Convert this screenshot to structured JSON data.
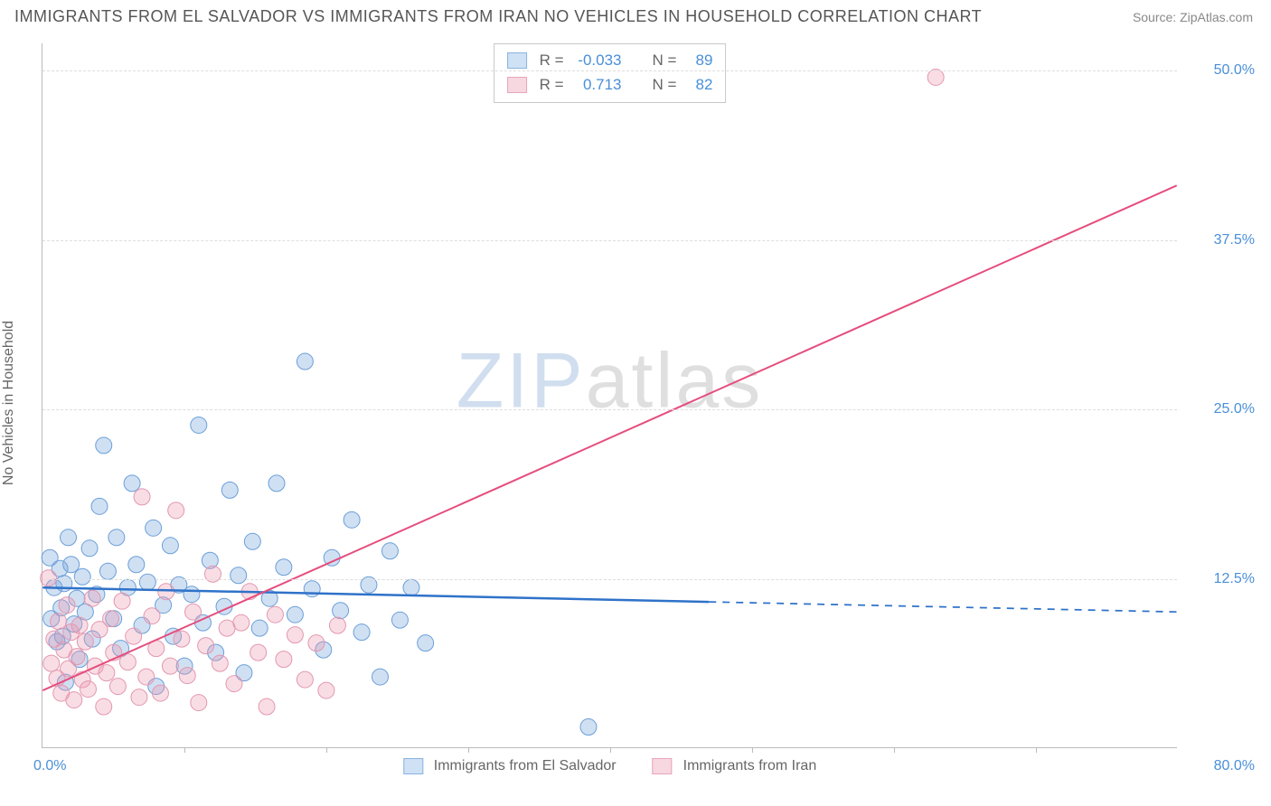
{
  "header": {
    "title": "IMMIGRANTS FROM EL SALVADOR VS IMMIGRANTS FROM IRAN NO VEHICLES IN HOUSEHOLD CORRELATION CHART",
    "source": "Source: ZipAtlas.com"
  },
  "watermark": {
    "part1": "ZIP",
    "part2": "atlas"
  },
  "axes": {
    "y_title": "No Vehicles in Household",
    "x_min": 0,
    "x_max": 80,
    "y_min": 0,
    "y_max": 52,
    "x_origin_label": "0.0%",
    "x_max_label": "80.0%",
    "y_ticks": [
      {
        "v": 12.5,
        "label": "12.5%"
      },
      {
        "v": 25.0,
        "label": "25.0%"
      },
      {
        "v": 37.5,
        "label": "37.5%"
      },
      {
        "v": 50.0,
        "label": "50.0%"
      }
    ],
    "x_tick_positions": [
      10,
      20,
      30,
      40,
      50,
      60,
      70
    ],
    "grid_color": "#dddddd",
    "tick_label_color": "#4a8fd8"
  },
  "series": [
    {
      "key": "el_salvador",
      "label": "Immigrants from El Salvador",
      "color_fill": "rgba(120,165,220,0.35)",
      "color_stroke": "#6a9fd8",
      "swatch_fill": "#cfe1f5",
      "swatch_border": "#8ab4e0",
      "R": "-0.033",
      "N": "89",
      "trend": {
        "x1": 0,
        "y1": 11.8,
        "x2": 80,
        "y2": 10.0,
        "solid_until_x": 47,
        "line_color": "#2f72c9",
        "line_width": 2.5
      },
      "marker_radius": 9,
      "points": [
        [
          0.5,
          14
        ],
        [
          0.6,
          9.5
        ],
        [
          0.8,
          11.8
        ],
        [
          1.0,
          7.8
        ],
        [
          1.2,
          13.2
        ],
        [
          1.3,
          10.3
        ],
        [
          1.4,
          8.2
        ],
        [
          1.5,
          12.1
        ],
        [
          1.6,
          4.8
        ],
        [
          1.8,
          15.5
        ],
        [
          2.0,
          13.5
        ],
        [
          2.2,
          9.1
        ],
        [
          2.4,
          11.0
        ],
        [
          2.6,
          6.5
        ],
        [
          2.8,
          12.6
        ],
        [
          3.0,
          10.0
        ],
        [
          3.3,
          14.7
        ],
        [
          3.5,
          8.0
        ],
        [
          3.8,
          11.3
        ],
        [
          4.0,
          17.8
        ],
        [
          4.3,
          22.3
        ],
        [
          4.6,
          13.0
        ],
        [
          5.0,
          9.5
        ],
        [
          5.2,
          15.5
        ],
        [
          5.5,
          7.3
        ],
        [
          6.0,
          11.8
        ],
        [
          6.3,
          19.5
        ],
        [
          6.6,
          13.5
        ],
        [
          7.0,
          9.0
        ],
        [
          7.4,
          12.2
        ],
        [
          7.8,
          16.2
        ],
        [
          8.0,
          4.5
        ],
        [
          8.5,
          10.5
        ],
        [
          9.0,
          14.9
        ],
        [
          9.2,
          8.2
        ],
        [
          9.6,
          12.0
        ],
        [
          10.0,
          6.0
        ],
        [
          10.5,
          11.3
        ],
        [
          11.0,
          23.8
        ],
        [
          11.3,
          9.2
        ],
        [
          11.8,
          13.8
        ],
        [
          12.2,
          7.0
        ],
        [
          12.8,
          10.4
        ],
        [
          13.2,
          19.0
        ],
        [
          13.8,
          12.7
        ],
        [
          14.2,
          5.5
        ],
        [
          14.8,
          15.2
        ],
        [
          15.3,
          8.8
        ],
        [
          16.0,
          11.0
        ],
        [
          16.5,
          19.5
        ],
        [
          17.0,
          13.3
        ],
        [
          17.8,
          9.8
        ],
        [
          18.5,
          28.5
        ],
        [
          19.0,
          11.7
        ],
        [
          19.8,
          7.2
        ],
        [
          20.4,
          14.0
        ],
        [
          21.0,
          10.1
        ],
        [
          21.8,
          16.8
        ],
        [
          22.5,
          8.5
        ],
        [
          23.0,
          12.0
        ],
        [
          23.8,
          5.2
        ],
        [
          24.5,
          14.5
        ],
        [
          25.2,
          9.4
        ],
        [
          26.0,
          11.8
        ],
        [
          27.0,
          7.7
        ],
        [
          38.5,
          1.5
        ]
      ]
    },
    {
      "key": "iran",
      "label": "Immigrants from Iran",
      "color_fill": "rgba(235,150,175,0.32)",
      "color_stroke": "#e397af",
      "swatch_fill": "#f7d7e0",
      "swatch_border": "#e9a5bb",
      "R": "0.713",
      "N": "82",
      "trend": {
        "x1": 0,
        "y1": 4.2,
        "x2": 80,
        "y2": 41.5,
        "solid_until_x": 80,
        "line_color": "#e54d7d",
        "line_width": 2
      },
      "marker_radius": 9,
      "points": [
        [
          0.4,
          12.5
        ],
        [
          0.6,
          6.2
        ],
        [
          0.8,
          8.0
        ],
        [
          1.0,
          5.1
        ],
        [
          1.1,
          9.3
        ],
        [
          1.3,
          4.0
        ],
        [
          1.5,
          7.2
        ],
        [
          1.7,
          10.5
        ],
        [
          1.8,
          5.8
        ],
        [
          2.0,
          8.5
        ],
        [
          2.2,
          3.5
        ],
        [
          2.4,
          6.7
        ],
        [
          2.6,
          9.0
        ],
        [
          2.8,
          5.0
        ],
        [
          3.0,
          7.8
        ],
        [
          3.2,
          4.3
        ],
        [
          3.5,
          11.0
        ],
        [
          3.7,
          6.0
        ],
        [
          4.0,
          8.7
        ],
        [
          4.3,
          3.0
        ],
        [
          4.5,
          5.5
        ],
        [
          4.8,
          9.5
        ],
        [
          5.0,
          7.0
        ],
        [
          5.3,
          4.5
        ],
        [
          5.6,
          10.8
        ],
        [
          6.0,
          6.3
        ],
        [
          6.4,
          8.2
        ],
        [
          6.8,
          3.7
        ],
        [
          7.0,
          18.5
        ],
        [
          7.3,
          5.2
        ],
        [
          7.7,
          9.7
        ],
        [
          8.0,
          7.3
        ],
        [
          8.3,
          4.0
        ],
        [
          8.7,
          11.5
        ],
        [
          9.0,
          6.0
        ],
        [
          9.4,
          17.5
        ],
        [
          9.8,
          8.0
        ],
        [
          10.2,
          5.3
        ],
        [
          10.6,
          10.0
        ],
        [
          11.0,
          3.3
        ],
        [
          11.5,
          7.5
        ],
        [
          12.0,
          12.8
        ],
        [
          12.5,
          6.2
        ],
        [
          13.0,
          8.8
        ],
        [
          13.5,
          4.7
        ],
        [
          14.0,
          9.2
        ],
        [
          14.6,
          11.5
        ],
        [
          15.2,
          7.0
        ],
        [
          15.8,
          3.0
        ],
        [
          16.4,
          9.8
        ],
        [
          17.0,
          6.5
        ],
        [
          17.8,
          8.3
        ],
        [
          18.5,
          5.0
        ],
        [
          19.3,
          7.7
        ],
        [
          20.0,
          4.2
        ],
        [
          20.8,
          9.0
        ],
        [
          63.0,
          49.5
        ]
      ]
    }
  ],
  "stats_box": {
    "labels": {
      "R": "R =",
      "N": "N ="
    }
  },
  "legend": {
    "items": [
      {
        "series": "el_salvador"
      },
      {
        "series": "iran"
      }
    ]
  }
}
